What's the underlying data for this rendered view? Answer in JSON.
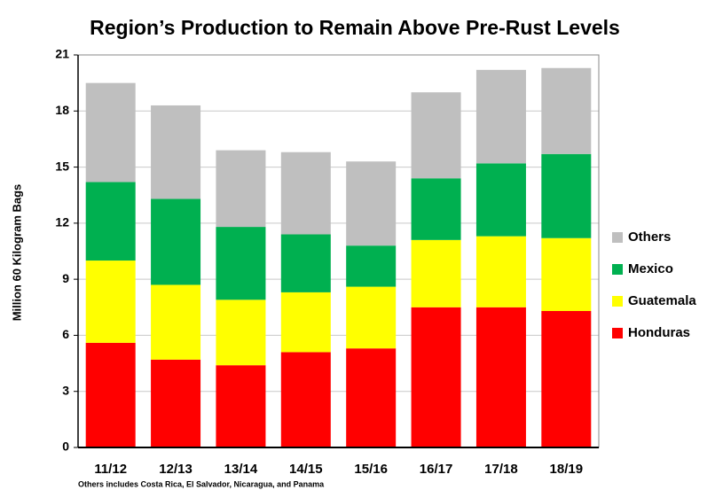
{
  "chart_data": {
    "type": "stacked_bar",
    "title": "Region’s Production to Remain Above Pre-Rust Levels",
    "y_label": "Million 60 Kilogram Bags",
    "footnote": "Others includes Costa Rica, El Salvador, Nicaragua, and Panama",
    "categories": [
      "11/12",
      "12/13",
      "13/14",
      "14/15",
      "15/16",
      "16/17",
      "17/18",
      "18/19"
    ],
    "series": [
      {
        "name": "Honduras",
        "color": "#ff0000",
        "values": [
          5.6,
          4.7,
          4.4,
          5.1,
          5.3,
          7.5,
          7.5,
          7.3
        ]
      },
      {
        "name": "Guatemala",
        "color": "#ffff00",
        "values": [
          4.4,
          4.0,
          3.5,
          3.2,
          3.3,
          3.6,
          3.8,
          3.9
        ]
      },
      {
        "name": "Mexico",
        "color": "#00b050",
        "values": [
          4.2,
          4.6,
          3.9,
          3.1,
          2.2,
          3.3,
          3.9,
          4.5
        ]
      },
      {
        "name": "Others",
        "color": "#bfbfbf",
        "values": [
          5.3,
          5.0,
          4.1,
          4.4,
          4.5,
          4.6,
          5.0,
          4.6
        ]
      }
    ],
    "ylim": [
      0,
      21
    ],
    "yticks": [
      0,
      3,
      6,
      9,
      12,
      15,
      18,
      21
    ],
    "grid": true,
    "legend": "right"
  }
}
